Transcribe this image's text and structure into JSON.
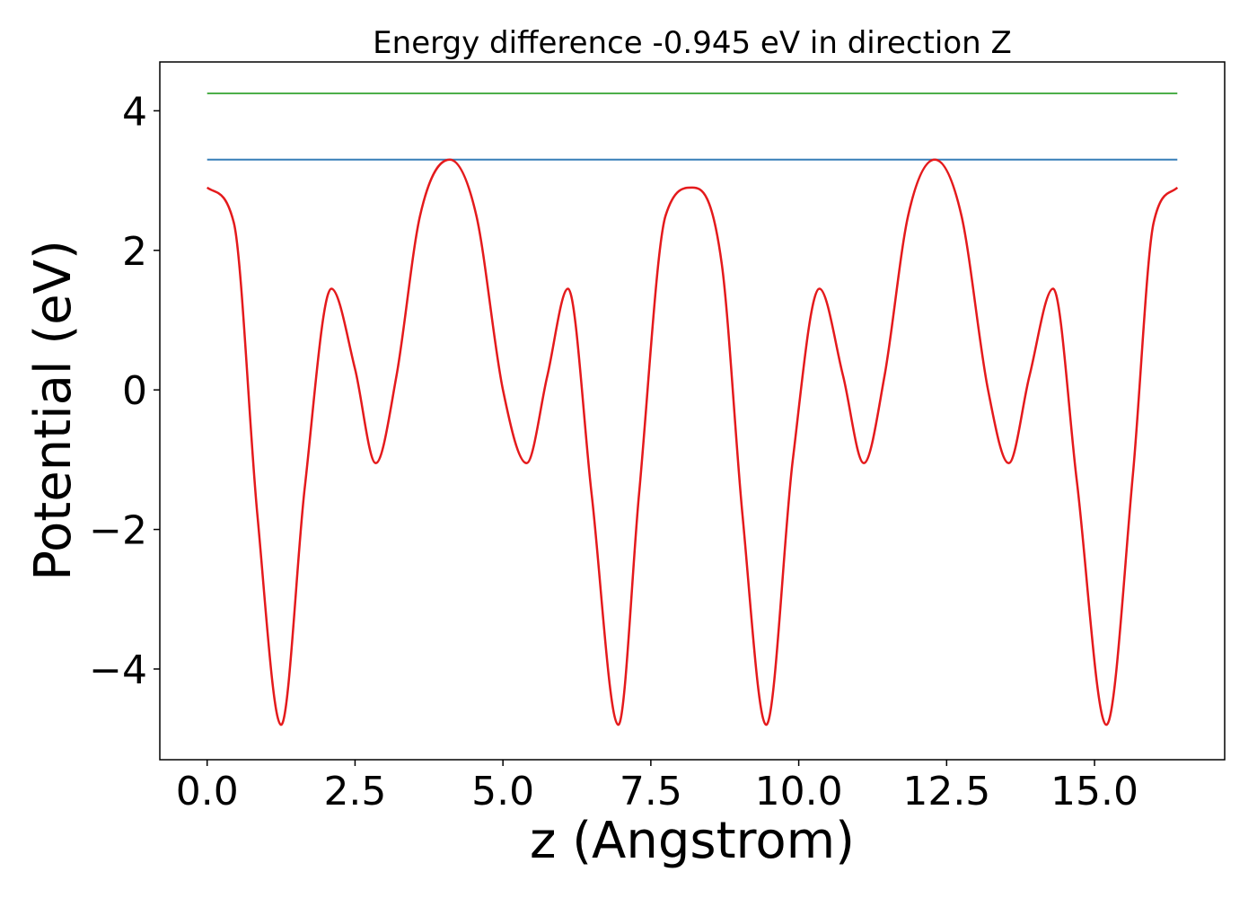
{
  "chart_data": {
    "type": "line",
    "title": "Energy difference -0.945 eV in direction Z",
    "xlabel": "z (Angstrom)",
    "ylabel": "Potential (eV)",
    "xlim": [
      -0.8,
      17.2
    ],
    "ylim": [
      -5.3,
      4.7
    ],
    "grid": false,
    "xticks": [
      0.0,
      2.5,
      5.0,
      7.5,
      10.0,
      12.5,
      15.0
    ],
    "xtick_labels": [
      "0.0",
      "2.5",
      "5.0",
      "7.5",
      "10.0",
      "12.5",
      "15.0"
    ],
    "yticks": [
      -4,
      -2,
      0,
      2,
      4
    ],
    "ytick_labels": [
      "−4",
      "−2",
      "0",
      "2",
      "4"
    ],
    "series": [
      {
        "color": "#e41a1c",
        "x": [
          0.0,
          0.45,
          0.85,
          1.25,
          1.65,
          2.1,
          2.5,
          2.85,
          3.2,
          3.6,
          4.1,
          4.55,
          5.0,
          5.4,
          5.75,
          6.1,
          6.5,
          6.95,
          7.3,
          7.75,
          8.2,
          8.7,
          9.05,
          9.45,
          9.9,
          10.35,
          10.75,
          11.1,
          11.45,
          11.85,
          12.3,
          12.75,
          13.2,
          13.55,
          13.9,
          14.3,
          14.7,
          15.2,
          15.65,
          16.0,
          16.4
        ],
        "y": [
          2.9,
          2.4,
          -1.8,
          -4.8,
          -1.4,
          1.45,
          0.3,
          -1.05,
          0.2,
          2.5,
          3.3,
          2.5,
          0.0,
          -1.05,
          0.2,
          1.45,
          -1.5,
          -4.8,
          -1.5,
          2.5,
          2.9,
          1.8,
          -1.8,
          -4.8,
          -1.0,
          1.45,
          0.2,
          -1.05,
          0.2,
          2.5,
          3.3,
          2.5,
          0.0,
          -1.05,
          0.2,
          1.45,
          -1.3,
          -4.8,
          -1.2,
          2.4,
          2.9
        ]
      },
      {
        "color": "#377eb8",
        "x": [
          0.0,
          16.4
        ],
        "y": [
          3.3,
          3.3
        ]
      },
      {
        "color": "#4daf4a",
        "x": [
          0.0,
          16.4
        ],
        "y": [
          4.25,
          4.25
        ]
      }
    ]
  }
}
